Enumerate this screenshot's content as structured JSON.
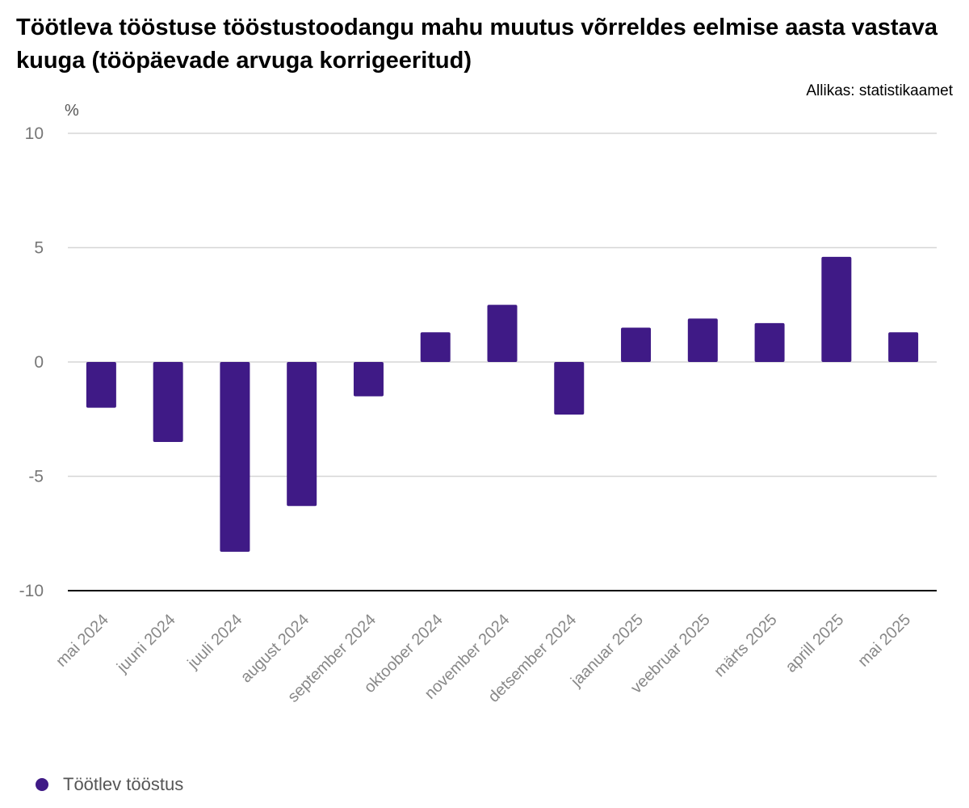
{
  "title": "Töötleva tööstuse tööstustoodangu mahu muutus võrreldes eelmise aasta vastava kuuga (tööpäevade arvuga korrigeeritud)",
  "source": "Allikas: statistikaamet",
  "chart_data": {
    "type": "bar",
    "ylabel": "%",
    "ylim": [
      -10,
      10
    ],
    "yticks": [
      10,
      5,
      0,
      -5,
      -10
    ],
    "categories": [
      "mai 2024",
      "juuni 2024",
      "juuli 2024",
      "august 2024",
      "september 2024",
      "oktoober 2024",
      "november 2024",
      "detsember 2024",
      "jaanuar 2025",
      "veebruar 2025",
      "märts 2025",
      "aprill 2025",
      "mai 2025"
    ],
    "series": [
      {
        "name": "Töötlev tööstus",
        "color": "#3f1a86",
        "values": [
          -2.0,
          -3.5,
          -8.3,
          -6.3,
          -1.5,
          1.3,
          2.5,
          -2.3,
          1.5,
          1.9,
          1.7,
          4.6,
          1.3
        ]
      }
    ],
    "grid": true,
    "legend_position": "bottom-left"
  }
}
